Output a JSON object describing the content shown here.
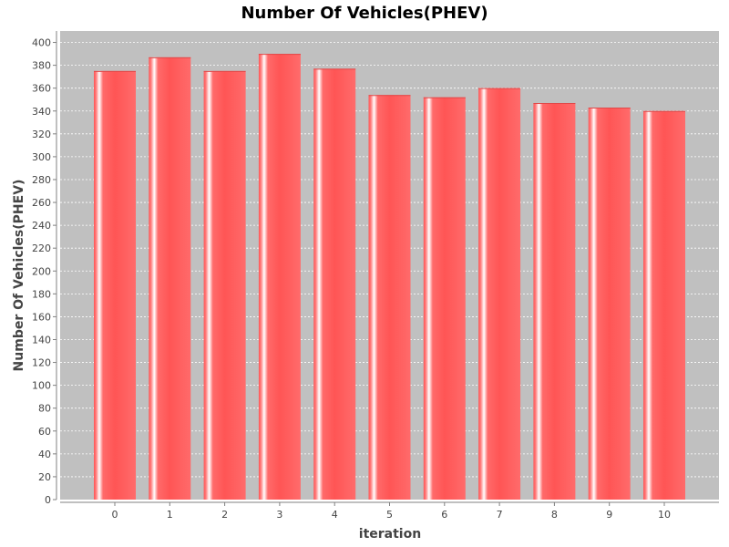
{
  "chart_data": {
    "type": "bar",
    "title": "Number Of Vehicles(PHEV)",
    "xlabel": "iteration",
    "ylabel": "Number Of Vehicles(PHEV)",
    "categories": [
      "0",
      "1",
      "2",
      "3",
      "4",
      "5",
      "6",
      "7",
      "8",
      "9",
      "10"
    ],
    "values": [
      375,
      387,
      375,
      390,
      377,
      354,
      352,
      360,
      347,
      343,
      340
    ],
    "ylim": [
      0,
      410
    ],
    "yticks": [
      "0",
      "20",
      "40",
      "60",
      "80",
      "100",
      "120",
      "140",
      "160",
      "180",
      "200",
      "220",
      "240",
      "260",
      "280",
      "300",
      "320",
      "340",
      "360",
      "380",
      "400"
    ],
    "grid": true,
    "legend": "none",
    "colors": {
      "plot_background": "#c0c0c0",
      "bar_fill": "#ff5555",
      "bar_highlight": "#ffffff",
      "grid": "#ffffff",
      "axis": "#808080"
    }
  }
}
